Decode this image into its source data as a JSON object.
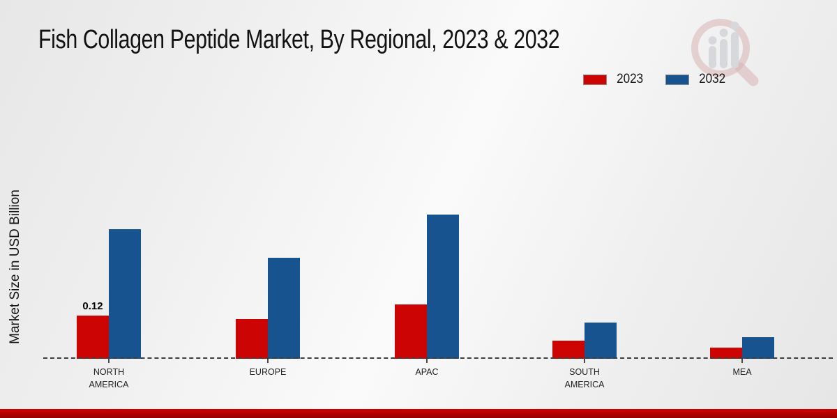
{
  "title": "Fish Collagen Peptide Market, By Regional, 2023 & 2032",
  "y_axis_label": "Market Size in USD Billion",
  "legend": {
    "position": "top-right",
    "items": [
      {
        "label": "2023",
        "color": "#cc0404"
      },
      {
        "label": "2032",
        "color": "#17538f"
      }
    ]
  },
  "watermark_icon": "bar-chart-magnifier-logo",
  "chart_data": {
    "type": "bar",
    "title": "Fish Collagen Peptide Market, By Regional, 2023 & 2032",
    "xlabel": "",
    "ylabel": "Market Size in USD Billion",
    "categories": [
      "NORTH AMERICA",
      "EUROPE",
      "APAC",
      "SOUTH AMERICA",
      "MEA"
    ],
    "series": [
      {
        "name": "2023",
        "color": "#cc0404",
        "values": [
          0.12,
          0.11,
          0.15,
          0.05,
          0.03
        ],
        "labels": [
          "0.12",
          "",
          "",
          "",
          ""
        ]
      },
      {
        "name": "2032",
        "color": "#17538f",
        "values": [
          0.36,
          0.28,
          0.4,
          0.1,
          0.06
        ],
        "labels": [
          "",
          "",
          "",
          "",
          ""
        ]
      }
    ],
    "ylim": [
      0,
      0.45
    ],
    "grid": false,
    "y_axis_ticks_visible": false,
    "baseline_style": "dashed",
    "legend_position": "top-right",
    "data_label_note": "only the 2023 North America bar shows a value label"
  },
  "footer": {
    "stripe_color": "#d10000",
    "stripe_dark_color": "#960000"
  }
}
